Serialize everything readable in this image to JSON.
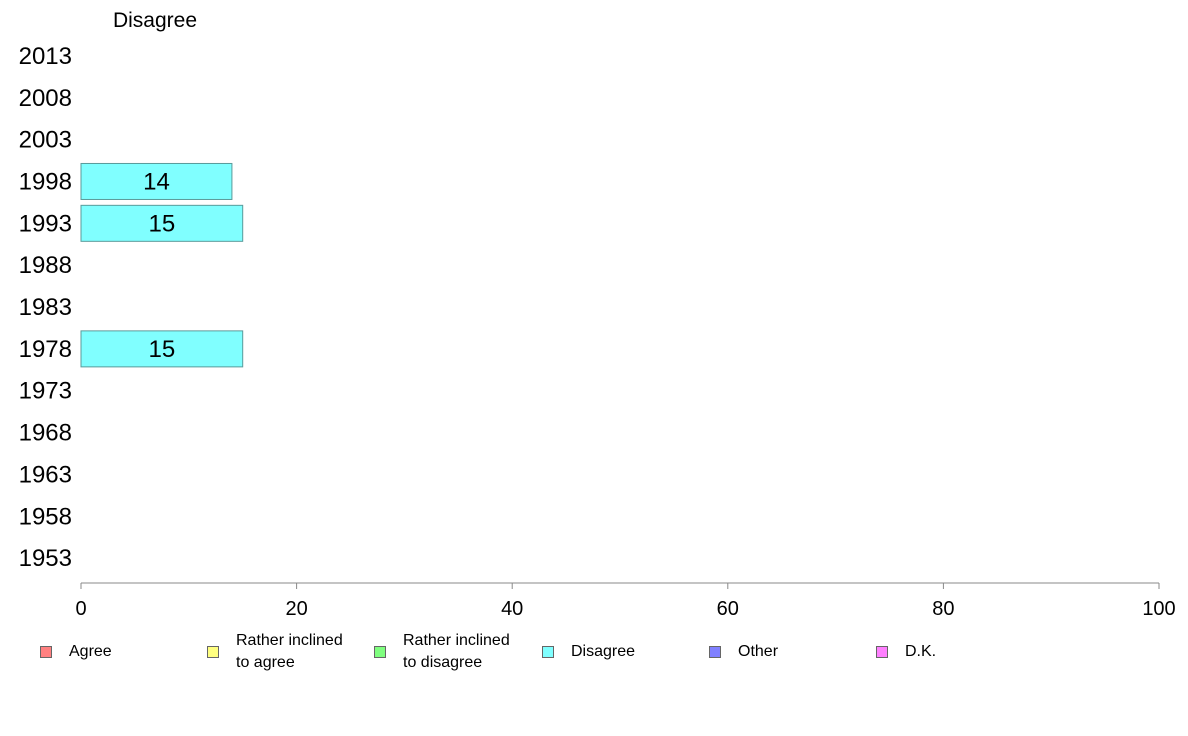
{
  "chart_data": {
    "type": "bar",
    "orientation": "horizontal",
    "panel_title": "Disagree",
    "categories": [
      "2013",
      "2008",
      "2003",
      "1998",
      "1993",
      "1988",
      "1983",
      "1978",
      "1973",
      "1968",
      "1963",
      "1958",
      "1953"
    ],
    "values": [
      null,
      null,
      null,
      14,
      15,
      null,
      null,
      15,
      null,
      null,
      null,
      null,
      null
    ],
    "data_labels": [
      "",
      "",
      "",
      "14",
      "15",
      "",
      "",
      "15",
      "",
      "",
      "",
      "",
      ""
    ],
    "bar_color": "#80ffff",
    "bar_border_color": "#5a9a9a",
    "xlim": [
      0,
      100
    ],
    "xticks": [
      "0",
      "20",
      "40",
      "60",
      "80",
      "100"
    ],
    "grid": false,
    "legend_position": "bottom",
    "legend": [
      {
        "label": "Agree",
        "color": "#ff8080"
      },
      {
        "label": "Rather inclined\nto agree",
        "color": "#ffff80"
      },
      {
        "label": "Rather inclined\nto disagree",
        "color": "#80ff80"
      },
      {
        "label": "Disagree",
        "color": "#80ffff"
      },
      {
        "label": "Other",
        "color": "#8080ff"
      },
      {
        "label": "D.K.",
        "color": "#ff80ff"
      }
    ]
  }
}
